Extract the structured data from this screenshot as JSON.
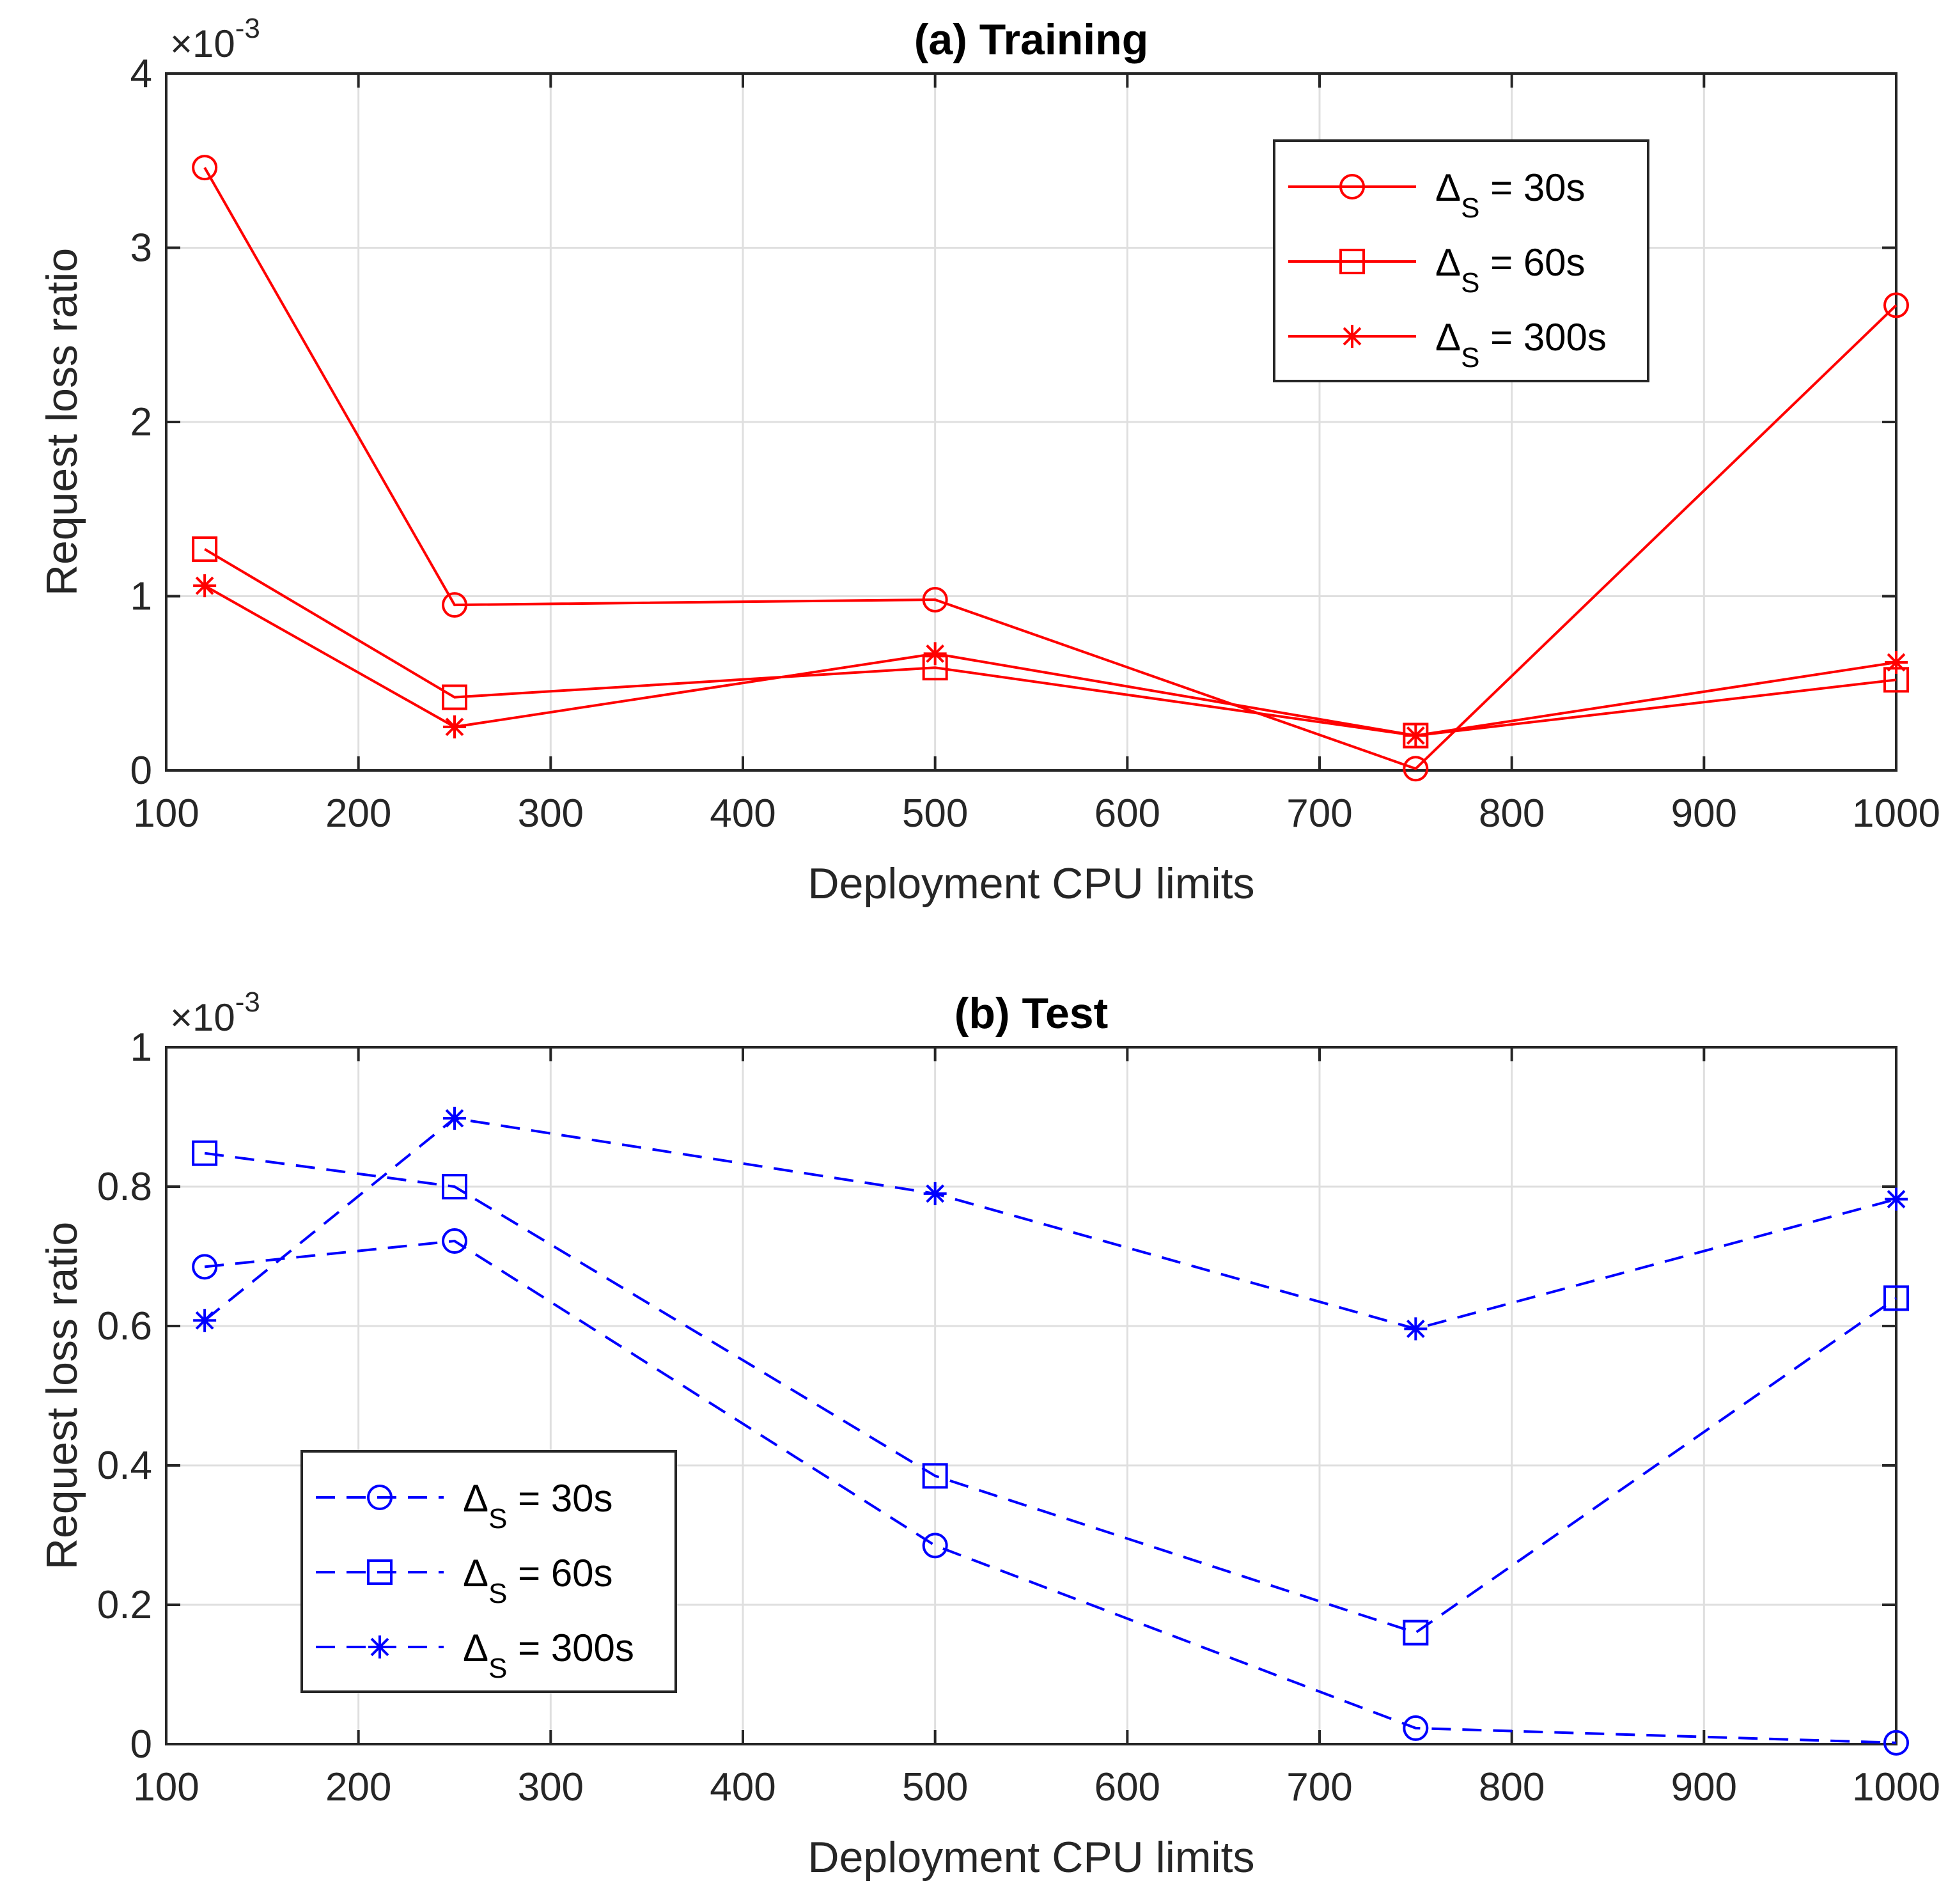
{
  "chart_data": [
    {
      "type": "line",
      "title": "(a) Training",
      "xlabel": "Deployment CPU limits",
      "ylabel": "Request loss ratio",
      "scale_base": "×10",
      "scale_exponent": "-3",
      "xlim": [
        100,
        1000
      ],
      "ylim": [
        0,
        4
      ],
      "xticks": [
        100,
        200,
        300,
        400,
        500,
        600,
        700,
        800,
        900,
        1000
      ],
      "yticks": [
        0,
        1,
        2,
        3,
        4
      ],
      "grid": true,
      "legend_position": "top-right",
      "color": "#ff0000",
      "linestyle": "solid",
      "x": [
        120,
        250,
        500,
        750,
        1000
      ],
      "series": [
        {
          "name": "ΔS = 30s",
          "label_main": "Δ",
          "label_sub": "S",
          "label_rest": " = 30s",
          "marker": "circle",
          "values": [
            3.46,
            0.95,
            0.98,
            0.01,
            2.67
          ]
        },
        {
          "name": "ΔS = 60s",
          "label_main": "Δ",
          "label_sub": "S",
          "label_rest": " = 60s",
          "marker": "square",
          "values": [
            1.27,
            0.42,
            0.59,
            0.2,
            0.52
          ]
        },
        {
          "name": "ΔS = 300s",
          "label_main": "Δ",
          "label_sub": "S",
          "label_rest": " = 300s",
          "marker": "asterisk",
          "values": [
            1.06,
            0.25,
            0.67,
            0.2,
            0.62
          ]
        }
      ]
    },
    {
      "type": "line",
      "title": "(b) Test",
      "xlabel": "Deployment CPU limits",
      "ylabel": "Request loss ratio",
      "scale_base": "×10",
      "scale_exponent": "-3",
      "xlim": [
        100,
        1000
      ],
      "ylim": [
        0,
        1
      ],
      "xticks": [
        100,
        200,
        300,
        400,
        500,
        600,
        700,
        800,
        900,
        1000
      ],
      "yticks": [
        0,
        0.2,
        0.4,
        0.6,
        0.8,
        1
      ],
      "grid": true,
      "legend_position": "bottom-left",
      "color": "#0000ff",
      "linestyle": "dashed",
      "x": [
        120,
        250,
        500,
        750,
        1000
      ],
      "series": [
        {
          "name": "ΔS = 30s",
          "label_main": "Δ",
          "label_sub": "S",
          "label_rest": " = 30s",
          "marker": "circle",
          "values": [
            0.685,
            0.722,
            0.285,
            0.023,
            0.002
          ]
        },
        {
          "name": "ΔS = 60s",
          "label_main": "Δ",
          "label_sub": "S",
          "label_rest": " = 60s",
          "marker": "square",
          "values": [
            0.848,
            0.8,
            0.385,
            0.16,
            0.64
          ]
        },
        {
          "name": "ΔS = 300s",
          "label_main": "Δ",
          "label_sub": "S",
          "label_rest": " = 300s",
          "marker": "asterisk",
          "values": [
            0.608,
            0.898,
            0.79,
            0.596,
            0.782
          ]
        }
      ]
    }
  ]
}
